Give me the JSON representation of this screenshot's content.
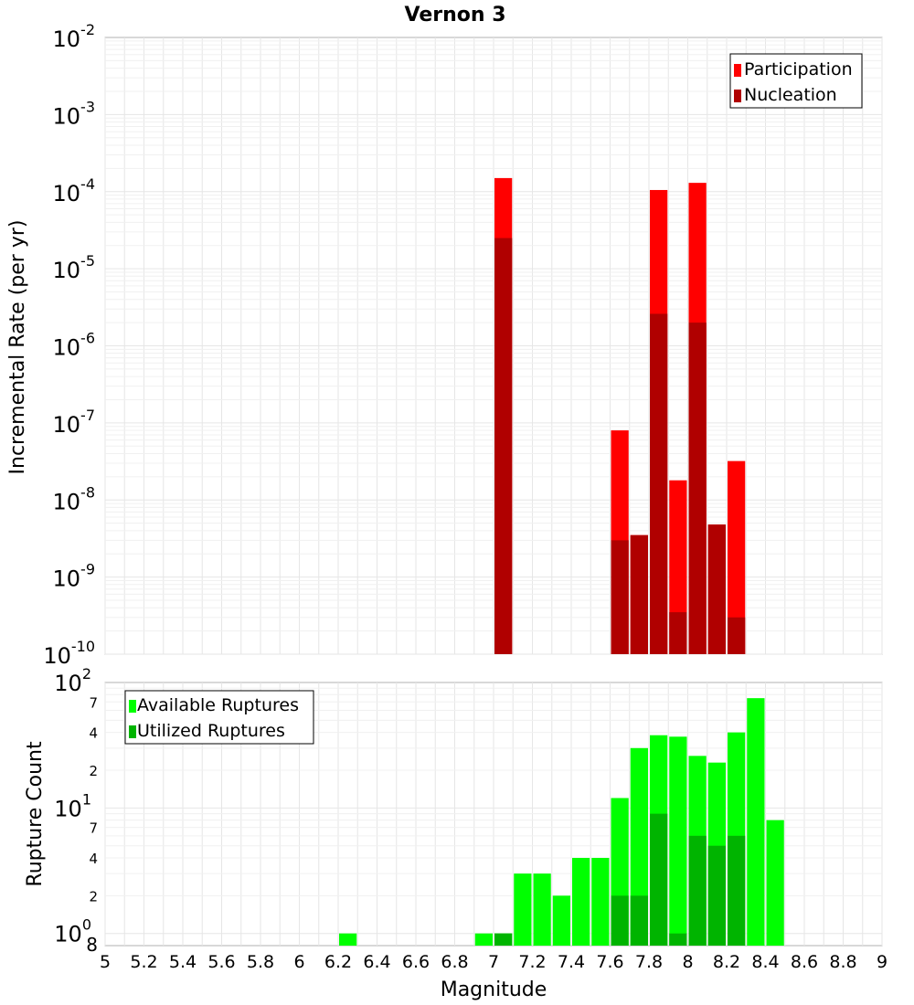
{
  "chart_data": [
    {
      "type": "bar",
      "title": "Vernon 3",
      "xlabel": "",
      "ylabel": "Incremental Rate (per yr)",
      "yscale": "log",
      "ylim": [
        1e-10,
        0.01
      ],
      "xlim": [
        5,
        9
      ],
      "y_ticks": [
        {
          "base": "10",
          "exp": "-2"
        },
        {
          "base": "10",
          "exp": "-3"
        },
        {
          "base": "10",
          "exp": "-4"
        },
        {
          "base": "10",
          "exp": "-5"
        },
        {
          "base": "10",
          "exp": "-6"
        },
        {
          "base": "10",
          "exp": "-7"
        },
        {
          "base": "10",
          "exp": "-8"
        },
        {
          "base": "10",
          "exp": "-9"
        },
        {
          "base": "10",
          "exp": "-10"
        }
      ],
      "bar_width": 0.1,
      "legend": {
        "position": "top-right",
        "entries": [
          "Participation",
          "Nucleation"
        ]
      },
      "series": [
        {
          "name": "Participation",
          "color": "#ff0000",
          "x": [
            7.05,
            7.65,
            7.75,
            7.85,
            7.95,
            8.05,
            8.15,
            8.25
          ],
          "values": [
            0.00015,
            8e-08,
            3.5e-09,
            0.000105,
            1.8e-08,
            0.00013,
            4.8e-09,
            3.2e-08
          ]
        },
        {
          "name": "Nucleation",
          "color": "#b00000",
          "x": [
            7.05,
            7.65,
            7.75,
            7.85,
            7.95,
            8.05,
            8.15,
            8.25
          ],
          "values": [
            2.5e-05,
            3e-09,
            3.5e-09,
            2.6e-06,
            3.5e-10,
            2e-06,
            4.8e-09,
            3e-10
          ]
        }
      ]
    },
    {
      "type": "bar",
      "title": "",
      "xlabel": "Magnitude",
      "ylabel": "Rupture Count",
      "yscale": "log",
      "ylim": [
        0.8,
        100
      ],
      "xlim": [
        5,
        9
      ],
      "x_ticks": [
        "5",
        "5.2",
        "5.4",
        "5.6",
        "5.8",
        "6",
        "6.2",
        "6.4",
        "6.6",
        "6.8",
        "7",
        "7.2",
        "7.4",
        "7.6",
        "7.8",
        "8",
        "8.2",
        "8.4",
        "8.6",
        "8.8",
        "9"
      ],
      "y_major_ticks": [
        {
          "base": "10",
          "exp": "2"
        },
        {
          "base": "10",
          "exp": "1"
        },
        {
          "base": "10",
          "exp": "0"
        }
      ],
      "y_minor_tick_labels": [
        "7",
        "4",
        "2",
        "7",
        "4",
        "2",
        "8"
      ],
      "bar_width": 0.1,
      "legend": {
        "position": "top-left",
        "entries": [
          "Available Ruptures",
          "Utilized Ruptures"
        ]
      },
      "series": [
        {
          "name": "Available Ruptures",
          "color": "#00ff00",
          "x": [
            6.25,
            6.95,
            7.05,
            7.15,
            7.25,
            7.35,
            7.45,
            7.55,
            7.65,
            7.75,
            7.85,
            7.95,
            8.05,
            8.15,
            8.25,
            8.35,
            8.45
          ],
          "values": [
            1,
            1,
            1,
            3,
            3,
            2,
            4,
            4,
            12,
            30,
            38,
            37,
            26,
            23,
            40,
            75,
            8
          ]
        },
        {
          "name": "Utilized Ruptures",
          "color": "#00b400",
          "x": [
            7.05,
            7.65,
            7.75,
            7.85,
            7.95,
            8.05,
            8.15,
            8.25
          ],
          "values": [
            1,
            2,
            2,
            9,
            1,
            6,
            5,
            6
          ]
        }
      ]
    }
  ]
}
